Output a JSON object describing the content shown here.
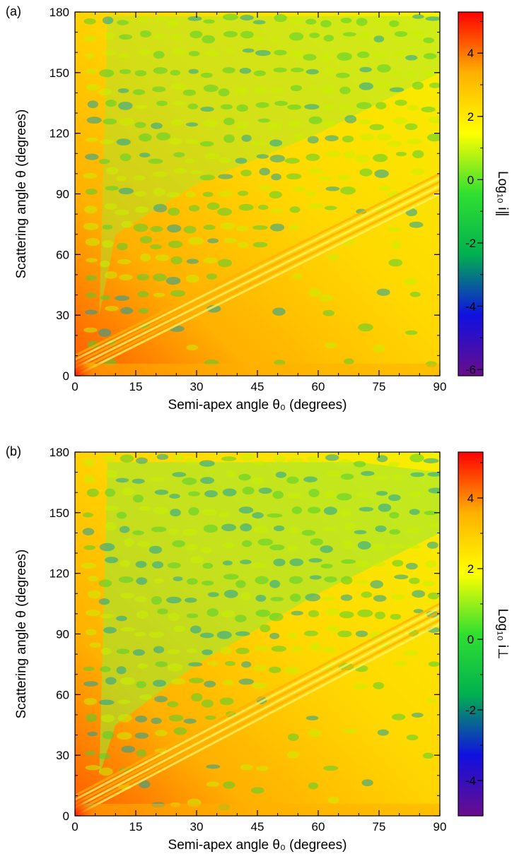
{
  "chart_data": [
    {
      "panel": "(a)",
      "type": "heatmap",
      "xlabel": "Semi-apex angle θ₀ (degrees)",
      "ylabel": "Scattering angle θ (degrees)",
      "xlim": [
        0,
        90
      ],
      "ylim": [
        0,
        180
      ],
      "xticks": [
        0,
        15,
        30,
        45,
        60,
        75,
        90
      ],
      "yticks": [
        0,
        30,
        60,
        90,
        120,
        150,
        180
      ],
      "colorbar": {
        "label": "Log₁₀ i∥",
        "range": [
          -6.2,
          5.3
        ],
        "ticks": [
          -6,
          -4,
          -2,
          0,
          2,
          4
        ],
        "colors": [
          "#6a0d8c",
          "#1010e0",
          "#00b050",
          "#30e030",
          "#ffff00",
          "#ffb000",
          "#ff0000"
        ]
      }
    },
    {
      "panel": "(b)",
      "type": "heatmap",
      "xlabel": "Semi-apex angle θ₀ (degrees)",
      "ylabel": "Scattering angle θ (degrees)",
      "xlim": [
        0,
        90
      ],
      "ylim": [
        0,
        180
      ],
      "xticks": [
        0,
        15,
        30,
        45,
        60,
        75,
        90
      ],
      "yticks": [
        0,
        30,
        60,
        90,
        120,
        150,
        180
      ],
      "colorbar": {
        "label": "Log₁₀ i⊥",
        "range": [
          -5.0,
          5.3
        ],
        "ticks": [
          -4,
          -2,
          0,
          2,
          4
        ],
        "colors": [
          "#6a0d8c",
          "#1010e0",
          "#00b050",
          "#30e030",
          "#ffff00",
          "#ffb000",
          "#ff0000"
        ]
      }
    }
  ]
}
